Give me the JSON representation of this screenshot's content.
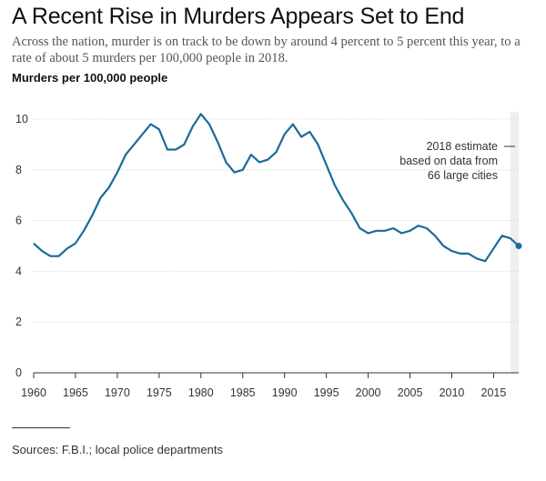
{
  "header": {
    "title": "A Recent Rise in Murders Appears Set to End",
    "subtitle": "Across the nation, murder is on track to be down by around 4 percent to 5 percent this year, to a rate of about 5 murders per 100,000 people in 2018.",
    "ylabel": "Murders per 100,000 people"
  },
  "annotation": {
    "lines": [
      "2018 estimate",
      "based on data from",
      "66 large cities"
    ]
  },
  "footer": {
    "source": "Sources: F.B.I.; local police departments"
  },
  "colors": {
    "line": "#1b6a9a",
    "shade": "#efefef",
    "grid": "#d0d0d0"
  },
  "chart_data": {
    "type": "line",
    "title": "A Recent Rise in Murders Appears Set to End",
    "xlabel": "",
    "ylabel": "Murders per 100,000 people",
    "xlim": [
      1960,
      2018
    ],
    "ylim": [
      0,
      10
    ],
    "x_ticks": [
      1960,
      1965,
      1970,
      1975,
      1980,
      1985,
      1990,
      1995,
      2000,
      2005,
      2010,
      2015
    ],
    "y_ticks": [
      0,
      2,
      4,
      6,
      8,
      10
    ],
    "highlight": {
      "x": 2018,
      "note": "estimate"
    },
    "x": [
      1960,
      1961,
      1962,
      1963,
      1964,
      1965,
      1966,
      1967,
      1968,
      1969,
      1970,
      1971,
      1972,
      1973,
      1974,
      1975,
      1976,
      1977,
      1978,
      1979,
      1980,
      1981,
      1982,
      1983,
      1984,
      1985,
      1986,
      1987,
      1988,
      1989,
      1990,
      1991,
      1992,
      1993,
      1994,
      1995,
      1996,
      1997,
      1998,
      1999,
      2000,
      2001,
      2002,
      2003,
      2004,
      2005,
      2006,
      2007,
      2008,
      2009,
      2010,
      2011,
      2012,
      2013,
      2014,
      2015,
      2016,
      2017,
      2018
    ],
    "values": [
      5.1,
      4.8,
      4.6,
      4.6,
      4.9,
      5.1,
      5.6,
      6.2,
      6.9,
      7.3,
      7.9,
      8.6,
      9.0,
      9.4,
      9.8,
      9.6,
      8.8,
      8.8,
      9.0,
      9.7,
      10.2,
      9.8,
      9.1,
      8.3,
      7.9,
      8.0,
      8.6,
      8.3,
      8.4,
      8.7,
      9.4,
      9.8,
      9.3,
      9.5,
      9.0,
      8.2,
      7.4,
      6.8,
      6.3,
      5.7,
      5.5,
      5.6,
      5.6,
      5.7,
      5.5,
      5.6,
      5.8,
      5.7,
      5.4,
      5.0,
      4.8,
      4.7,
      4.7,
      4.5,
      4.4,
      4.9,
      5.4,
      5.3,
      5.0
    ]
  }
}
